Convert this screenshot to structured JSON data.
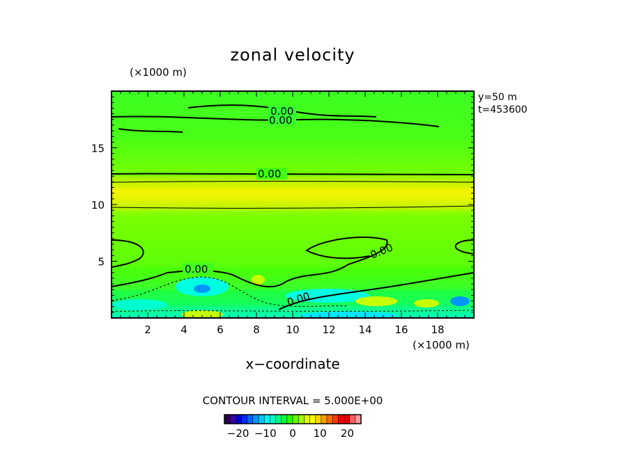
{
  "chart_data": {
    "type": "heatmap",
    "title": "zonal velocity",
    "xlabel": "x−coordinate",
    "x_unit": "(×1000 m)",
    "y_unit": "(×1000 m)",
    "xlim": [
      0,
      20
    ],
    "ylim": [
      0,
      20
    ],
    "x_ticks": [
      2,
      4,
      6,
      8,
      10,
      12,
      14,
      16,
      18
    ],
    "y_ticks": [
      5,
      10,
      15
    ],
    "annotations": [
      "y=50 m",
      "t=453600"
    ],
    "contour_interval": "CONTOUR INTERVAL = 5.000E+00",
    "contour_labels": [
      "0.00",
      "0.00",
      "0.00",
      "0.00",
      "0.00",
      "0.00"
    ],
    "colorbar": {
      "range": [
        -25,
        25
      ],
      "ticks": [
        -20,
        -10,
        0,
        10,
        20
      ],
      "tick_labels": [
        "−20",
        "−10",
        "0",
        "10",
        "20"
      ],
      "colors": [
        "#2a0050",
        "#3c00a0",
        "#0000cd",
        "#0028ff",
        "#0064ff",
        "#0096ff",
        "#00c8ff",
        "#00f0ff",
        "#00ffc8",
        "#00ff82",
        "#00ff3c",
        "#28ff00",
        "#64ff00",
        "#a0ff00",
        "#dcff00",
        "#ffff00",
        "#ffd200",
        "#ffa000",
        "#ff6e00",
        "#ff3c00",
        "#ff0000",
        "#e60000",
        "#ff6060",
        "#ff9a9a"
      ]
    },
    "bands": [
      {
        "y": [
          0,
          1.0
        ],
        "value": -6
      },
      {
        "y": [
          1.0,
          2.5
        ],
        "value": -4
      },
      {
        "y": [
          2.5,
          4.5
        ],
        "value": 1
      },
      {
        "y": [
          4.5,
          9.5
        ],
        "value": 4
      },
      {
        "y": [
          9.5,
          12.5
        ],
        "value": 9
      },
      {
        "y": [
          12.5,
          17.0
        ],
        "value": 2
      },
      {
        "y": [
          17.0,
          20.0
        ],
        "value": 0
      }
    ]
  }
}
